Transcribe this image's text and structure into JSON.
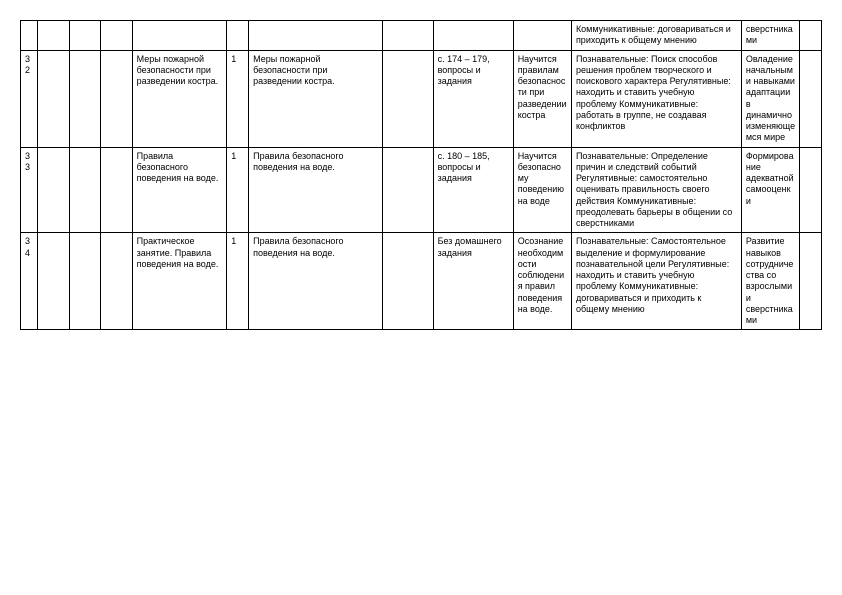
{
  "rows": [
    {
      "num": "",
      "col1": "",
      "col2": "",
      "col3": "",
      "topic": "",
      "hours": "",
      "content": "",
      "empty": "",
      "materials": "",
      "result": "",
      "uud": "Коммуникативные: договариваться и приходить к общему мнению",
      "personal": "сверстниками",
      "last": ""
    },
    {
      "num": "32",
      "col1": "",
      "col2": "",
      "col3": "",
      "topic": "Меры пожарной безопасности при разведении костра.",
      "hours": "1",
      "content": "Меры пожарной безопасности при разведении костра.",
      "empty": "",
      "materials": "с. 174 – 179, вопросы и задания",
      "result": "Научится правилам безопасности при разведении костра",
      "uud": "Познавательные: Поиск способов решения проблем творческого и поискового характера Регулятивные: находить и ставить учебную проблему Коммуникативные: работать в группе, не создавая конфликтов",
      "personal": "Овладение начальными навыками адаптации в динамично изменяющемся мире",
      "last": ""
    },
    {
      "num": "33",
      "col1": "",
      "col2": "",
      "col3": "",
      "topic": "Правила безопасного поведения на воде.",
      "hours": "1",
      "content": "Правила безопасного поведения на воде.",
      "empty": "",
      "materials": "с. 180 – 185, вопросы и задания",
      "result": "Научится безопасному поведению на воде",
      "uud": "Познавательные: Определение причин и следствий событий Регулятивные: самостоятельно оценивать правильность своего действия Коммуникативные: преодолевать барьеры в общении со сверстниками",
      "personal": "Формирование адекватной самооценки",
      "last": ""
    },
    {
      "num": "34",
      "col1": "",
      "col2": "",
      "col3": "",
      "topic": "Практическое занятие. Правила поведения на воде.",
      "hours": "1",
      "content": "Правила безопасного поведения на воде.",
      "empty": "",
      "materials": "Без домашнего задания",
      "result": "Осознание необходимости соблюдения правил поведения на воде.",
      "uud": "Познавательные: Самостоятельное выделение и формулирование познавательной цели Регулятивные: находить и ставить учебную проблему Коммуникативные: договариваться и приходить к общему мнению",
      "personal": "Развитие навыков сотрудничества со взрослыми и сверстниками",
      "last": ""
    }
  ]
}
